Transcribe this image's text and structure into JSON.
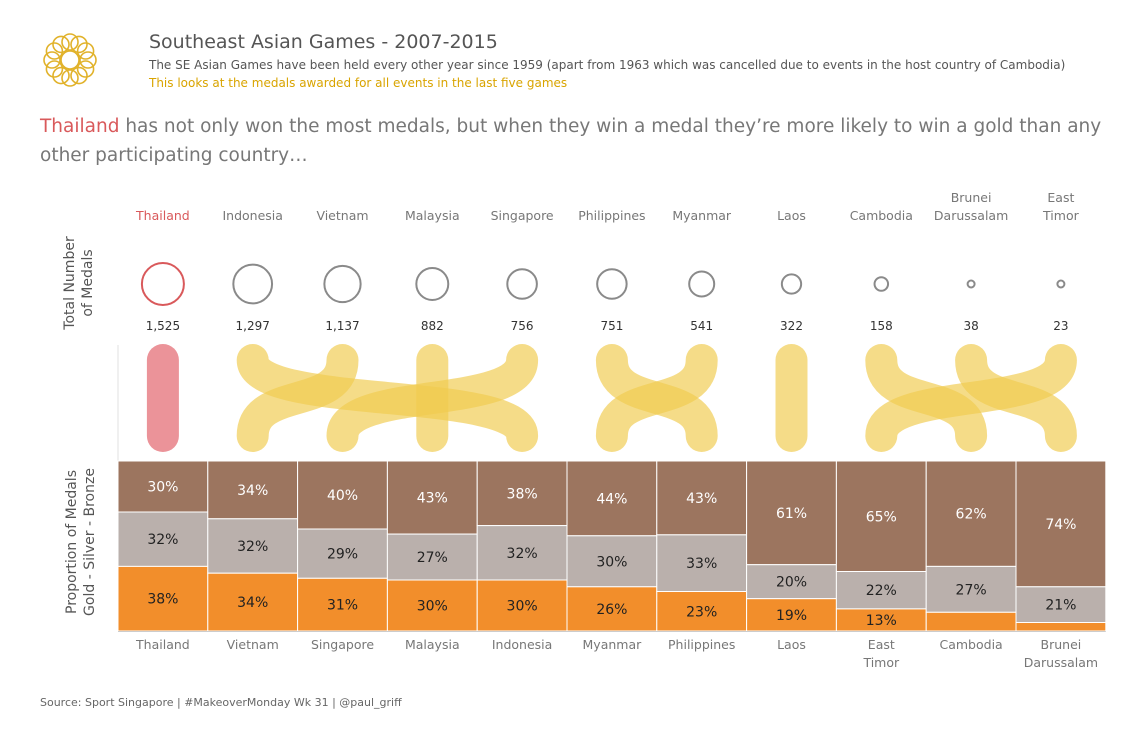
{
  "header": {
    "logo_icon": "sea-games-ring-logo-icon",
    "title": "Southeast Asian Games - 2007-2015",
    "subtitle": "The SE Asian Games have been held every other year since 1959 (apart from 1963 which was cancelled due to events in the host country of Cambodia)",
    "tagline": "This looks at the medals awarded for all events in the last five games"
  },
  "headline": {
    "highlight": "Thailand",
    "rest": " has not only won the most medals, but when they win a medal they’re more likely to win a gold than any other participating country…"
  },
  "footer": {
    "source": "Source: Sport Singapore  |  #MakeoverMonday Wk 31  |  @paul_griff"
  },
  "colors": {
    "gold": "#f28e2b",
    "silver": "#bab0ac",
    "bronze": "#9c755f",
    "highlight": "#d9595b",
    "highlight_fill": "#eb9399",
    "connector": "#f0cc50",
    "circle": "#8a8a8a",
    "logo": "#e1b22a"
  },
  "chart_data": [
    {
      "type": "scatter",
      "ylabel": "Total Number of Medals",
      "highlight": "Thailand",
      "categories": [
        "Thailand",
        "Indonesia",
        "Vietnam",
        "Malaysia",
        "Singapore",
        "Philippines",
        "Myanmar",
        "Laos",
        "Cambodia",
        "Brunei Darussalam",
        "East Timor"
      ],
      "values": [
        1525,
        1297,
        1137,
        882,
        756,
        751,
        541,
        322,
        158,
        38,
        23
      ]
    },
    {
      "type": "bar",
      "stacked": "100%",
      "ylabel": "Proportion of Medals Gold - Silver - Bronze",
      "highlight": "Thailand",
      "categories": [
        "Thailand",
        "Vietnam",
        "Singapore",
        "Malaysia",
        "Indonesia",
        "Myanmar",
        "Philippines",
        "Laos",
        "East Timor",
        "Cambodia",
        "Brunei Darussalam"
      ],
      "series": [
        {
          "name": "Gold",
          "values": [
            38,
            34,
            31,
            30,
            30,
            26,
            23,
            19,
            13,
            11,
            5
          ],
          "labels": [
            "38%",
            "34%",
            "31%",
            "30%",
            "30%",
            "26%",
            "23%",
            "19%",
            "13%",
            "",
            ""
          ]
        },
        {
          "name": "Silver",
          "values": [
            32,
            32,
            29,
            27,
            32,
            30,
            33,
            20,
            22,
            27,
            21
          ],
          "labels": [
            "32%",
            "32%",
            "29%",
            "27%",
            "32%",
            "30%",
            "33%",
            "20%",
            "22%",
            "27%",
            "21%"
          ]
        },
        {
          "name": "Bronze",
          "values": [
            30,
            34,
            40,
            43,
            38,
            44,
            43,
            61,
            65,
            62,
            74
          ],
          "labels": [
            "30%",
            "34%",
            "40%",
            "43%",
            "38%",
            "44%",
            "43%",
            "61%",
            "65%",
            "62%",
            "74%"
          ]
        }
      ]
    }
  ]
}
